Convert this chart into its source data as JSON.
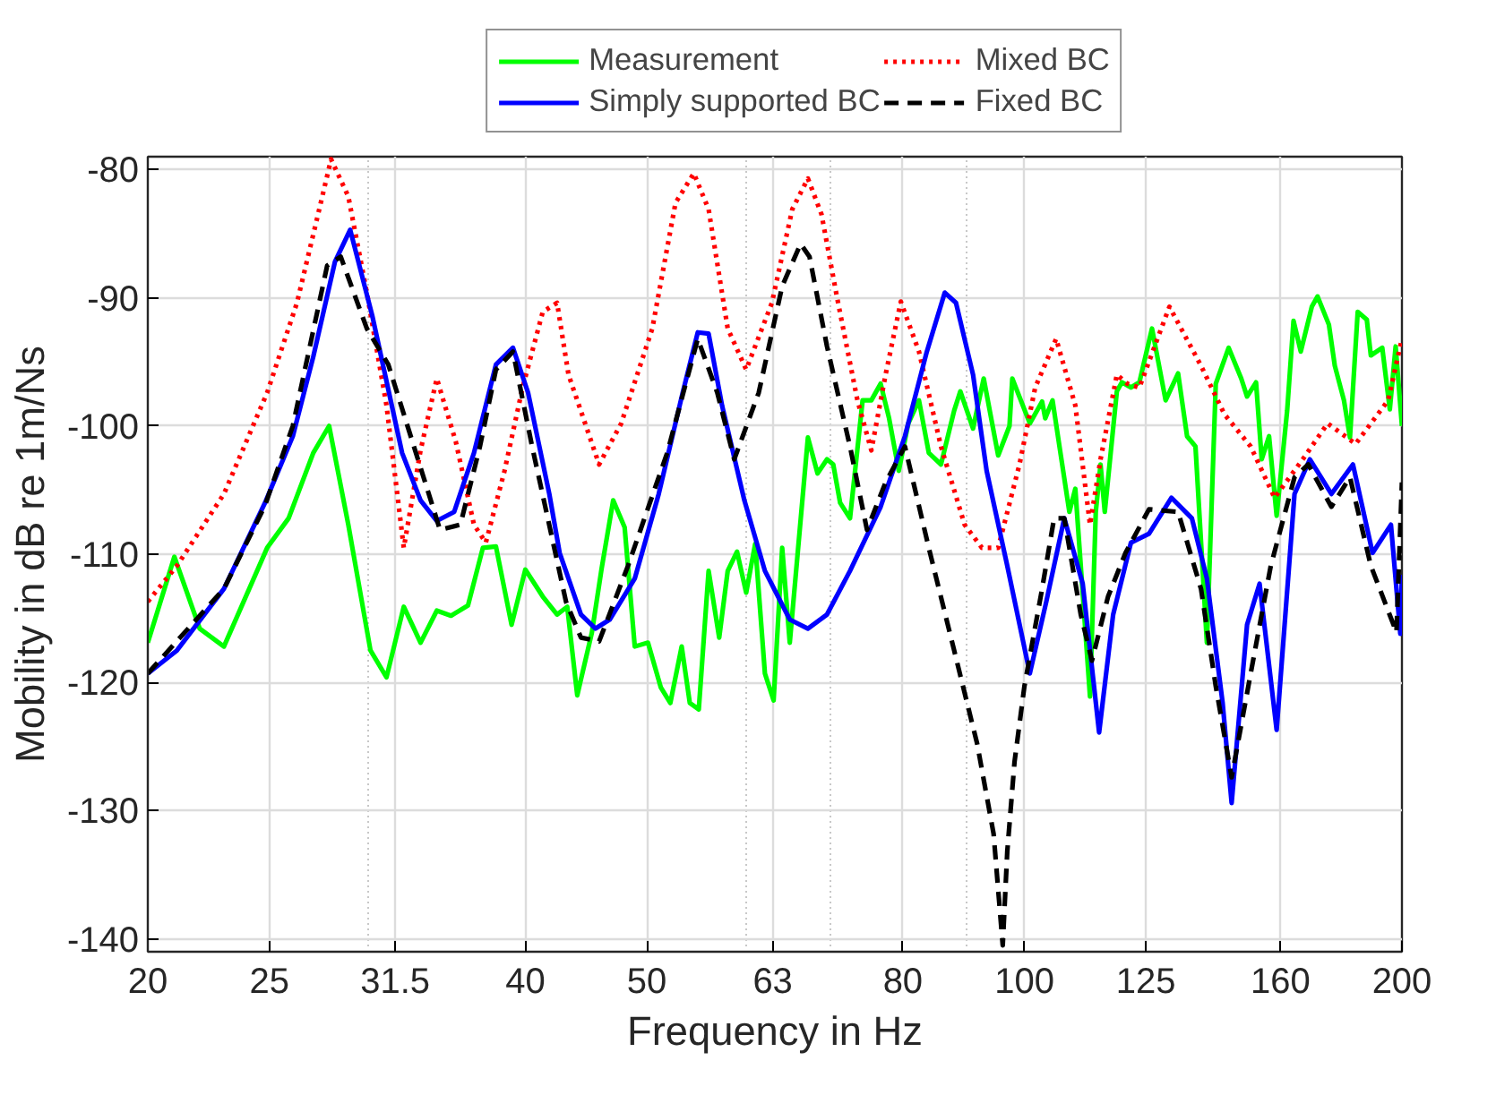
{
  "chart_data": {
    "type": "line",
    "xlabel": "Frequency in Hz",
    "ylabel": "Mobility in dB re 1m/Ns",
    "log": "x",
    "grid": true,
    "legend": "top",
    "xlim": [
      20,
      200
    ],
    "ylim": [
      -141,
      -79
    ],
    "xticks": [
      20,
      25,
      {
        "value": 30,
        "label": null
      },
      {
        "value": 31.5,
        "label": "31.5"
      },
      40,
      50,
      {
        "value": 60,
        "label": null
      },
      63,
      {
        "value": 70,
        "label": null
      },
      80,
      {
        "value": 90,
        "label": null
      },
      100,
      125,
      160,
      200
    ],
    "yticks": [
      -140,
      -130,
      -120,
      -110,
      -100,
      -90,
      -80
    ],
    "series": [
      {
        "name": "Measurement",
        "color": "#00ff00",
        "line_style": "solid",
        "x": [
          20,
          21.0,
          22.0,
          23.0,
          24.9,
          25.9,
          27.1,
          27.9,
          28.9,
          30.1,
          31.0,
          32.0,
          33.0,
          34.0,
          34.9,
          36,
          37,
          37.9,
          39,
          40,
          41.3,
          42.4,
          43.2,
          44.0,
          45.2,
          46.0,
          47.0,
          48.0,
          48.9,
          50.1,
          51.3,
          52.2,
          53.3,
          54.1,
          55.0,
          56.0,
          57.1,
          58.0,
          59.0,
          60.0,
          61.0,
          62.1,
          63.1,
          64.1,
          65.0,
          67.2,
          68.4,
          69.6,
          70.4,
          71.3,
          72.6,
          74.3,
          75.5,
          76.8,
          78.0,
          79.4,
          80.8,
          82.4,
          83.9,
          85.8,
          87.9,
          88.9,
          91,
          92.8,
          95.3,
          97.3,
          97.8,
          101,
          103.3,
          103.9,
          105.3,
          108.6,
          109.8,
          112.8,
          114,
          115,
          115.9,
          118.5,
          119.6,
          121.6,
          123.5,
          126.4,
          129.6,
          132.6,
          134.8,
          136.9,
          139.8,
          142.1,
          145.5,
          148.9,
          150.5,
          153,
          154.6,
          156.7,
          158.9,
          162,
          163.9,
          166.1,
          169.5,
          171.3,
          174.9,
          176.8,
          179.8,
          181.8,
          184.4,
          187.5,
          188.9,
          192.9,
          195.6,
          197.7,
          200
        ],
        "values": [
          -116.9,
          -110.2,
          -115.8,
          -117.2,
          -109.5,
          -107.2,
          -102.1,
          -100,
          -107.7,
          -117.5,
          -119.6,
          -114.1,
          -116.9,
          -114.4,
          -114.8,
          -114.0,
          -109.5,
          -109.4,
          -115.5,
          -111.2,
          -113.3,
          -114.7,
          -114.1,
          -121,
          -116.1,
          -111.2,
          -105.8,
          -107.9,
          -117.2,
          -116.9,
          -120.4,
          -121.6,
          -117.2,
          -121.6,
          -122.1,
          -111.3,
          -116.5,
          -111.3,
          -109.8,
          -113.0,
          -109.2,
          -119.3,
          -121.4,
          -109.5,
          -116.9,
          -100.9,
          -103.7,
          -102.6,
          -103.0,
          -106.0,
          -107.2,
          -98.0,
          -98.0,
          -96.7,
          -99.4,
          -103.5,
          -99.8,
          -98.0,
          -102.1,
          -103,
          -98.8,
          -97.3,
          -100.2,
          -96.3,
          -102.3,
          -100,
          -96.3,
          -99.8,
          -98.1,
          -99.4,
          -98.0,
          -106.7,
          -104.9,
          -121.1,
          -106.7,
          -103,
          -106.7,
          -97.3,
          -96.6,
          -97,
          -96.6,
          -92.4,
          -98,
          -95.9,
          -100.8,
          -101.6,
          -116.9,
          -96.7,
          -93.9,
          -96.3,
          -97.7,
          -96.6,
          -102.6,
          -100.8,
          -107.0,
          -98.8,
          -91.8,
          -94.2,
          -90.7,
          -89.9,
          -92.1,
          -95.3,
          -98,
          -100.9,
          -91.1,
          -91.7,
          -94.5,
          -93.9,
          -98.7,
          -93.8,
          -100
        ]
      },
      {
        "name": "Mixed BC",
        "color": "#ff0000",
        "line_style": "dotted",
        "x": [
          20,
          21.1,
          23.0,
          24.9,
          26.3,
          27.4,
          28.0,
          28.9,
          29.9,
          31.0,
          32.0,
          33.0,
          34.0,
          35.2,
          36.4,
          37.2,
          38.5,
          39.8,
          41.3,
          42.4,
          43.3,
          45.8,
          47.7,
          50.5,
          52.7,
          54.5,
          56.0,
          58.0,
          60.0,
          62.9,
          65.3,
          67.2,
          68.9,
          70.9,
          73.6,
          75.5,
          77.5,
          79.7,
          82.4,
          85.8,
          89.6,
          92.5,
          95.3,
          99.1,
          102,
          106.0,
          109.8,
          112.8,
          115,
          118.5,
          120.8,
          123.5,
          130.5,
          138.3,
          144.4,
          151.5,
          158.3,
          166.7,
          174.5,
          183.7,
          195,
          200
        ],
        "values": [
          -113.7,
          -110.9,
          -105.3,
          -97.4,
          -90.4,
          -83.1,
          -79.2,
          -82.1,
          -89.6,
          -98.4,
          -109.5,
          -101.9,
          -96.3,
          -101.2,
          -107.7,
          -109.1,
          -103.5,
          -97,
          -91.1,
          -90.4,
          -96.0,
          -103,
          -99.8,
          -92.4,
          -82.6,
          -80.3,
          -83.1,
          -92.4,
          -95.6,
          -90.4,
          -83.1,
          -80.7,
          -83.5,
          -90,
          -98,
          -101.9,
          -96,
          -90.3,
          -94.2,
          -101.6,
          -107.7,
          -109.5,
          -109.5,
          -103,
          -97,
          -93.2,
          -98.4,
          -107.7,
          -102.6,
          -96,
          -96.7,
          -97,
          -90.7,
          -95.3,
          -99.1,
          -101.6,
          -105.6,
          -102.6,
          -99.8,
          -101.4,
          -98,
          -93.2
        ]
      },
      {
        "name": "Simply supported BC",
        "color": "#0000ff",
        "line_style": "solid",
        "x": [
          20,
          21.1,
          23.0,
          24.8,
          26.1,
          27.1,
          28.2,
          29.0,
          30.2,
          31.9,
          33.0,
          34.0,
          35.1,
          36.4,
          37.9,
          39.1,
          40.2,
          41.8,
          42.6,
          44.3,
          45.5,
          46.7,
          48.9,
          51.1,
          53.4,
          54.9,
          56.0,
          57.4,
          59.8,
          62.1,
          65.0,
          67.2,
          69.6,
          72.6,
          76.8,
          80.3,
          83.6,
          86.4,
          88.2,
          91.0,
          93.3,
          96.9,
          101,
          104.1,
          107.6,
          111.3,
          114.7,
          117.7,
          121.6,
          125.7,
          131.0,
          136.0,
          139.8,
          143.9,
          146.3,
          150.5,
          154,
          158.9,
          164.2,
          168.9,
          175.7,
          182.8,
          189.5,
          196,
          199.4,
          200
        ],
        "values": [
          -119.3,
          -117.5,
          -112.7,
          -106.0,
          -100.8,
          -94.6,
          -87.2,
          -84.7,
          -91.4,
          -102.1,
          -105.8,
          -107.4,
          -106.7,
          -102.1,
          -95.2,
          -93.9,
          -97.4,
          -105.3,
          -109.9,
          -114.7,
          -115.8,
          -115.1,
          -111.9,
          -105.3,
          -97.4,
          -92.7,
          -92.8,
          -98.4,
          -105.8,
          -111.3,
          -115.1,
          -115.8,
          -114.7,
          -111.3,
          -106.3,
          -100.8,
          -94.2,
          -89.6,
          -90.4,
          -96.0,
          -103.5,
          -110.9,
          -119.3,
          -113.7,
          -107.2,
          -112.3,
          -123.9,
          -114.7,
          -109.1,
          -108.4,
          -105.6,
          -107.2,
          -111.9,
          -121.6,
          -129.4,
          -115.5,
          -112.3,
          -123.7,
          -105.3,
          -102.6,
          -105.3,
          -103,
          -109.9,
          -107.7,
          -116.2,
          -111.6
        ]
      },
      {
        "name": "Fixed BC",
        "color": "#000000",
        "line_style": "dashed",
        "x": [
          20,
          23.0,
          24.8,
          26.1,
          27.8,
          28.5,
          29.9,
          31.1,
          32.6,
          34.2,
          35.5,
          36.8,
          37.9,
          39.1,
          40.5,
          43.1,
          44.3,
          45.8,
          48.3,
          51.9,
          54.9,
          56.9,
          58.7,
          61.4,
          64.1,
          66.3,
          67.4,
          69.6,
          72.6,
          74.9,
          77.5,
          80.3,
          83.9,
          87.9,
          91.7,
          94.5,
          96.1,
          96.9,
          98.2,
          100,
          103.3,
          105.6,
          107.6,
          110.9,
          113.2,
          116.6,
          120.4,
          125.7,
          132.6,
          138.3,
          142.1,
          146.3,
          151.5,
          157.2,
          164.2,
          168.4,
          175.7,
          181.8,
          188.9,
          198,
          200
        ],
        "values": [
          -119.3,
          -112.7,
          -106.2,
          -100.0,
          -87.5,
          -86.8,
          -92.4,
          -95.2,
          -101.6,
          -108.1,
          -107.7,
          -101.6,
          -95.6,
          -94.2,
          -101.6,
          -113.7,
          -116.5,
          -116.8,
          -110.9,
          -102.1,
          -93.2,
          -97.4,
          -102.6,
          -97.4,
          -89.1,
          -85.8,
          -86.8,
          -93.8,
          -101.6,
          -108.1,
          -104.4,
          -101.6,
          -109.5,
          -117.5,
          -124.8,
          -131.8,
          -140.5,
          -133.2,
          -126.2,
          -120.3,
          -112.7,
          -107.2,
          -107.2,
          -114.7,
          -118.3,
          -113.3,
          -109.9,
          -106.5,
          -106.7,
          -112.7,
          -120.3,
          -127.4,
          -119.3,
          -110.9,
          -104,
          -103,
          -106.3,
          -104,
          -110.9,
          -116.1,
          -104.4
        ]
      }
    ]
  }
}
